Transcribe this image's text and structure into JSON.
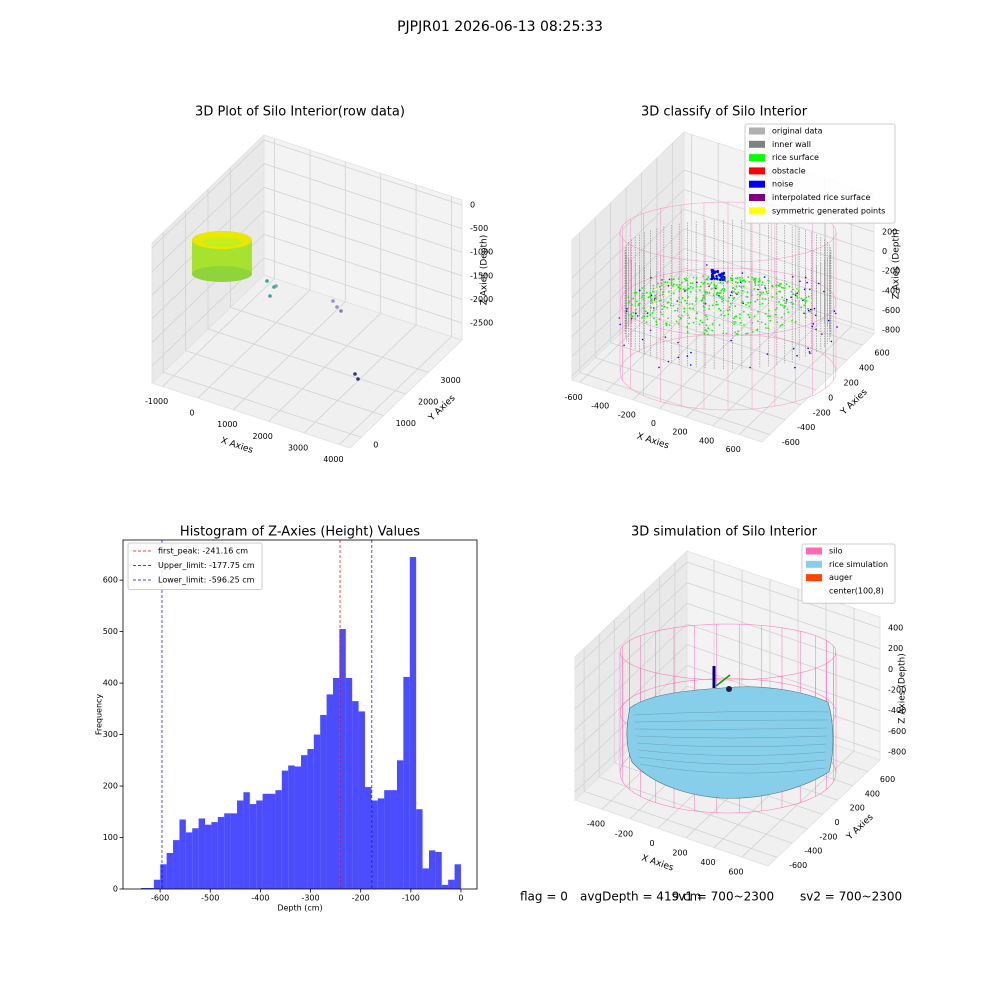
{
  "suptitle": "PJPJR01 2026-06-13 08:25:33",
  "footer": [
    "flag = 0",
    "avgDepth = 419 cm",
    "sv1 = 700~2300",
    "sv2 = 700~2300"
  ],
  "chart_data": [
    {
      "type": "scatter3d",
      "title": "3D Plot of Silo Interior(row data)",
      "xlabel": "X Axies",
      "ylabel": "Y Axies",
      "zlabel": "Z Axies (Depth)",
      "xlim": [
        -1300,
        4300
      ],
      "ylim": [
        -500,
        4500
      ],
      "zlim": [
        -2860,
        106
      ],
      "xticks": [
        -1000,
        0,
        1000,
        2000,
        3000,
        4000
      ],
      "yticks": [
        0,
        1000,
        2000,
        3000
      ],
      "zticks": [
        0,
        -500,
        -1000,
        -1500,
        -2000,
        -2500
      ]
    },
    {
      "type": "scatter3d",
      "title": "3D classify of Silo Interior",
      "xlabel": "X Axies",
      "ylabel": "Y Axies",
      "zlabel": "Z Axies (Depth)",
      "xlim": [
        -657,
        771
      ],
      "ylim": [
        -700,
        750
      ],
      "zlim": [
        -841,
        588
      ],
      "xticks": [
        -600,
        -400,
        -200,
        0,
        200,
        400,
        600
      ],
      "yticks": [
        -600,
        -400,
        -200,
        0,
        200,
        400,
        600
      ],
      "zticks": [
        200,
        0,
        -200,
        -400,
        -600,
        -800
      ],
      "legend": "upper right",
      "legend_items": [
        {
          "name": "original data",
          "color": "#b0b0b0"
        },
        {
          "name": "inner wall",
          "color": "#808080"
        },
        {
          "name": "rice surface",
          "color": "#00ff00"
        },
        {
          "name": "obstacle",
          "color": "#ff0000"
        },
        {
          "name": "noise",
          "color": "#0000ff"
        },
        {
          "name": "interpolated rice surface",
          "color": "#800080"
        },
        {
          "name": "symmetric generated points",
          "color": "#ffff00"
        }
      ]
    },
    {
      "type": "histogram",
      "title": "Histogram of Z-Axies (Height) Values",
      "xlabel": "Depth (cm)",
      "ylabel": "Frequency",
      "color": "#0000ff",
      "alpha": 0.7,
      "bins": [
        -638,
        -625.24,
        -612.48,
        -599.72,
        -586.96,
        -574.2,
        -561.44,
        -548.68,
        -535.92,
        -523.16,
        -510.4,
        -497.64,
        -484.88,
        -472.12,
        -459.36,
        -446.6,
        -433.84,
        -421.08,
        -408.32,
        -395.56,
        -382.8,
        -370.04,
        -357.28,
        -344.52,
        -331.76,
        -319,
        -306.24,
        -293.48,
        -280.72,
        -267.96,
        -255.2,
        -242.44,
        -229.68,
        -216.92,
        -204.16,
        -191.4,
        -178.64,
        -165.88,
        -153.12,
        -140.36,
        -127.6,
        -114.84,
        -102.08,
        -89.32,
        -76.56,
        -63.8,
        -51.04,
        -38.28,
        -25.52,
        -12.76,
        0
      ],
      "counts": [
        2,
        2,
        18,
        48,
        70,
        95,
        135,
        110,
        118,
        137,
        125,
        130,
        140,
        147,
        147,
        172,
        188,
        165,
        172,
        185,
        185,
        192,
        230,
        240,
        238,
        260,
        272,
        300,
        338,
        378,
        410,
        505,
        410,
        365,
        345,
        198,
        172,
        176,
        192,
        192,
        250,
        412,
        645,
        155,
        40,
        75,
        72,
        8,
        18,
        48
      ],
      "xlim": [
        -674,
        32
      ],
      "ylim": [
        0,
        678
      ],
      "xticks": [
        -600,
        -500,
        -400,
        -300,
        -200,
        -100,
        0
      ],
      "yticks": [
        0,
        100,
        200,
        300,
        400,
        500,
        600
      ],
      "vlines": [
        {
          "name": "first_peak: -241.16 cm",
          "value": -241.16,
          "color": "#ff0000"
        },
        {
          "name": "Upper_limit: -177.75 cm",
          "value": -177.75,
          "color": "#0000ff"
        },
        {
          "name": "Lower_limit: -596.25 cm",
          "value": -596.25,
          "color": "#0000ff"
        }
      ],
      "legend": "upper left"
    },
    {
      "type": "surface3d",
      "title": "3D simulation of Silo Interior",
      "xlabel": "X Axies",
      "ylabel": "Y Axies",
      "zlabel": "Z Axies (Depth)",
      "xlim": [
        -593,
        786
      ],
      "ylim": [
        -720,
        760
      ],
      "zlim": [
        -877,
        506
      ],
      "xticks": [
        -400,
        -200,
        0,
        200,
        400,
        600
      ],
      "yticks": [
        -600,
        -400,
        -200,
        0,
        200,
        400,
        600
      ],
      "zticks": [
        400,
        200,
        0,
        -200,
        -400,
        -600,
        -800
      ],
      "legend": "upper right",
      "legend_items": [
        {
          "name": "silo",
          "color": "#ff69b4"
        },
        {
          "name": "rice simulation",
          "color": "#87ceeb"
        },
        {
          "name": "auger",
          "color": "#ff4500"
        },
        {
          "name": "center(100,8)",
          "color": "#ffffff"
        }
      ]
    }
  ]
}
